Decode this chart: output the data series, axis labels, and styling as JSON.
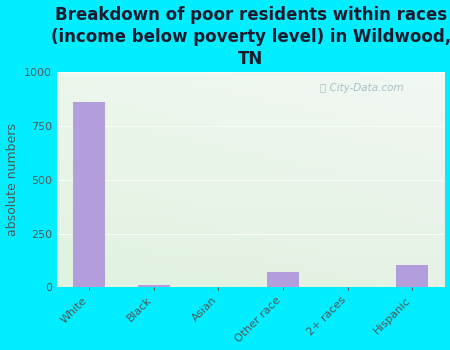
{
  "title": "Breakdown of poor residents within races\n(income below poverty level) in Wildwood,\nTN",
  "categories": [
    "White",
    "Black",
    "Asian",
    "Other race",
    "2+ races",
    "Hispanic"
  ],
  "values": [
    860,
    12,
    0,
    70,
    0,
    105
  ],
  "bar_color": "#b39ddb",
  "ylabel": "absolute numbers",
  "ylim": [
    0,
    1000
  ],
  "yticks": [
    0,
    250,
    500,
    750,
    1000
  ],
  "background_outer": "#00eeff",
  "grad_color_top": "#e8f5e9",
  "grad_color_bottom": "#c8e6c9",
  "grad_color_right": "#ddeedd",
  "watermark": "City-Data.com",
  "title_fontsize": 12,
  "ylabel_fontsize": 9,
  "tick_fontsize": 8,
  "title_color": "#1a1a2e",
  "axis_color": "#555555"
}
